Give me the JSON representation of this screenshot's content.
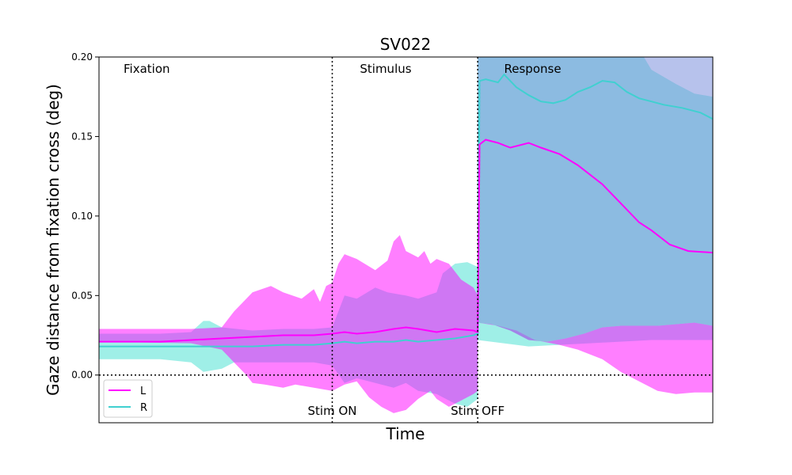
{
  "chart_data": {
    "type": "line",
    "title": "SV022",
    "xlabel": "Time",
    "ylabel": "Gaze distance from fixation cross (deg)",
    "ylim": [
      -0.03,
      0.2
    ],
    "xlim": [
      0,
      100
    ],
    "yticks": [
      0.0,
      0.05,
      0.1,
      0.15,
      0.2
    ],
    "ytick_labels": [
      "0.00",
      "0.05",
      "0.10",
      "0.15",
      "0.20"
    ],
    "x_ticks_shown": false,
    "grid": false,
    "legend_position": "lower-left",
    "phase_labels": [
      {
        "x": 4,
        "text": "Fixation"
      },
      {
        "x": 42.5,
        "text": "Stimulus"
      },
      {
        "x": 66,
        "text": "Response"
      }
    ],
    "vlines": [
      {
        "x": 38,
        "label": "Stim ON"
      },
      {
        "x": 61.7,
        "label": "Stim OFF"
      }
    ],
    "hline": 0,
    "series": [
      {
        "name": "L",
        "color": "#ff00ff",
        "fill_color": "#ff00ff",
        "mean": [
          [
            0,
            0.021
          ],
          [
            10,
            0.021
          ],
          [
            15,
            0.022
          ],
          [
            20,
            0.023
          ],
          [
            25,
            0.024
          ],
          [
            30,
            0.025
          ],
          [
            35,
            0.025
          ],
          [
            38,
            0.026
          ],
          [
            40,
            0.027
          ],
          [
            42,
            0.026
          ],
          [
            45,
            0.027
          ],
          [
            48,
            0.029
          ],
          [
            50,
            0.03
          ],
          [
            52,
            0.029
          ],
          [
            55,
            0.027
          ],
          [
            58,
            0.029
          ],
          [
            61,
            0.028
          ],
          [
            61.7,
            0.027
          ],
          [
            62,
            0.145
          ],
          [
            63,
            0.148
          ],
          [
            65,
            0.146
          ],
          [
            67,
            0.143
          ],
          [
            70,
            0.146
          ],
          [
            72,
            0.143
          ],
          [
            75,
            0.139
          ],
          [
            78,
            0.132
          ],
          [
            82,
            0.12
          ],
          [
            85,
            0.108
          ],
          [
            88,
            0.096
          ],
          [
            90,
            0.091
          ],
          [
            93,
            0.082
          ],
          [
            96,
            0.078
          ],
          [
            100,
            0.077
          ]
        ],
        "upper": [
          [
            0,
            0.029
          ],
          [
            15,
            0.029
          ],
          [
            20,
            0.03
          ],
          [
            22,
            0.04
          ],
          [
            25,
            0.052
          ],
          [
            28,
            0.056
          ],
          [
            30,
            0.052
          ],
          [
            33,
            0.048
          ],
          [
            35,
            0.054
          ],
          [
            36,
            0.046
          ],
          [
            37,
            0.056
          ],
          [
            38,
            0.058
          ],
          [
            39,
            0.07
          ],
          [
            40,
            0.076
          ],
          [
            42,
            0.073
          ],
          [
            45,
            0.066
          ],
          [
            47,
            0.072
          ],
          [
            48,
            0.084
          ],
          [
            49,
            0.088
          ],
          [
            50,
            0.078
          ],
          [
            52,
            0.074
          ],
          [
            53,
            0.078
          ],
          [
            54,
            0.07
          ],
          [
            55,
            0.073
          ],
          [
            57,
            0.07
          ],
          [
            59,
            0.06
          ],
          [
            61,
            0.055
          ],
          [
            61.7,
            0.05
          ]
        ],
        "lower": [
          [
            0,
            0.021
          ],
          [
            15,
            0.02
          ],
          [
            20,
            0.016
          ],
          [
            22,
            0.008
          ],
          [
            24,
            0.0
          ],
          [
            25,
            -0.005
          ],
          [
            27,
            -0.006
          ],
          [
            30,
            -0.008
          ],
          [
            32,
            -0.006
          ],
          [
            35,
            -0.008
          ],
          [
            38,
            -0.01
          ],
          [
            40,
            -0.006
          ],
          [
            42,
            -0.004
          ],
          [
            44,
            -0.014
          ],
          [
            46,
            -0.02
          ],
          [
            48,
            -0.024
          ],
          [
            50,
            -0.022
          ],
          [
            52,
            -0.015
          ],
          [
            54,
            -0.01
          ],
          [
            55,
            -0.015
          ],
          [
            57,
            -0.02
          ],
          [
            59,
            -0.016
          ],
          [
            61,
            -0.012
          ],
          [
            61.7,
            -0.01
          ]
        ],
        "resp_upper": [
          [
            61.7,
            0.205
          ],
          [
            100,
            0.205
          ]
        ],
        "resp_lower": [
          [
            61.7,
            0.033
          ],
          [
            65,
            0.031
          ],
          [
            68,
            0.028
          ],
          [
            71,
            0.022
          ],
          [
            75,
            0.019
          ],
          [
            78,
            0.016
          ],
          [
            82,
            0.01
          ],
          [
            85,
            0.002
          ],
          [
            88,
            -0.004
          ],
          [
            91,
            -0.01
          ],
          [
            94,
            -0.012
          ],
          [
            97,
            -0.011
          ],
          [
            100,
            -0.011
          ]
        ],
        "resp_upper_outer": [
          [
            61.7,
            0.033
          ],
          [
            64,
            0.032
          ],
          [
            67,
            0.028
          ],
          [
            70,
            0.022
          ],
          [
            73,
            0.021
          ],
          [
            76,
            0.023
          ],
          [
            79,
            0.026
          ],
          [
            82,
            0.03
          ],
          [
            85,
            0.031
          ],
          [
            88,
            0.031
          ],
          [
            91,
            0.031
          ],
          [
            94,
            0.032
          ],
          [
            97,
            0.033
          ],
          [
            100,
            0.031
          ]
        ]
      },
      {
        "name": "R",
        "color": "#40d0d0",
        "fill_color": "#40e0d0",
        "mean": [
          [
            0,
            0.018
          ],
          [
            10,
            0.018
          ],
          [
            15,
            0.018
          ],
          [
            20,
            0.018
          ],
          [
            25,
            0.018
          ],
          [
            30,
            0.019
          ],
          [
            35,
            0.019
          ],
          [
            38,
            0.02
          ],
          [
            40,
            0.021
          ],
          [
            42,
            0.02
          ],
          [
            45,
            0.021
          ],
          [
            48,
            0.021
          ],
          [
            50,
            0.022
          ],
          [
            52,
            0.021
          ],
          [
            55,
            0.022
          ],
          [
            58,
            0.023
          ],
          [
            61,
            0.025
          ],
          [
            61.7,
            0.026
          ],
          [
            62,
            0.185
          ],
          [
            63,
            0.186
          ],
          [
            65,
            0.184
          ],
          [
            66,
            0.189
          ],
          [
            68,
            0.181
          ],
          [
            70,
            0.176
          ],
          [
            72,
            0.172
          ],
          [
            74,
            0.171
          ],
          [
            76,
            0.173
          ],
          [
            78,
            0.178
          ],
          [
            80,
            0.181
          ],
          [
            82,
            0.185
          ],
          [
            84,
            0.184
          ],
          [
            86,
            0.178
          ],
          [
            88,
            0.174
          ],
          [
            90,
            0.172
          ],
          [
            92,
            0.17
          ],
          [
            95,
            0.168
          ],
          [
            98,
            0.165
          ],
          [
            100,
            0.161
          ]
        ],
        "upper": [
          [
            0,
            0.026
          ],
          [
            10,
            0.026
          ],
          [
            15,
            0.027
          ],
          [
            17,
            0.034
          ],
          [
            18,
            0.034
          ],
          [
            20,
            0.03
          ],
          [
            25,
            0.028
          ],
          [
            30,
            0.029
          ],
          [
            35,
            0.029
          ],
          [
            38,
            0.03
          ],
          [
            40,
            0.05
          ],
          [
            42,
            0.048
          ],
          [
            45,
            0.055
          ],
          [
            47,
            0.052
          ],
          [
            50,
            0.05
          ],
          [
            52,
            0.048
          ],
          [
            55,
            0.052
          ],
          [
            56,
            0.064
          ],
          [
            58,
            0.07
          ],
          [
            60,
            0.071
          ],
          [
            61.7,
            0.068
          ]
        ],
        "lower": [
          [
            0,
            0.01
          ],
          [
            10,
            0.01
          ],
          [
            15,
            0.008
          ],
          [
            17,
            0.002
          ],
          [
            20,
            0.004
          ],
          [
            22,
            0.008
          ],
          [
            25,
            0.008
          ],
          [
            30,
            0.008
          ],
          [
            35,
            0.008
          ],
          [
            38,
            0.006
          ],
          [
            40,
            -0.005
          ],
          [
            42,
            -0.002
          ],
          [
            45,
            -0.005
          ],
          [
            48,
            -0.008
          ],
          [
            50,
            -0.005
          ],
          [
            52,
            -0.01
          ],
          [
            55,
            -0.012
          ],
          [
            58,
            -0.018
          ],
          [
            60,
            -0.02
          ],
          [
            61.7,
            -0.015
          ]
        ],
        "resp_upper": [
          [
            61.7,
            0.205
          ],
          [
            88,
            0.205
          ],
          [
            90,
            0.192
          ],
          [
            94,
            0.183
          ],
          [
            97,
            0.177
          ],
          [
            100,
            0.175
          ]
        ],
        "resp_band_lower": [
          [
            61.7,
            0.022
          ],
          [
            70,
            0.018
          ],
          [
            80,
            0.02
          ],
          [
            90,
            0.022
          ],
          [
            100,
            0.022
          ]
        ]
      }
    ]
  }
}
